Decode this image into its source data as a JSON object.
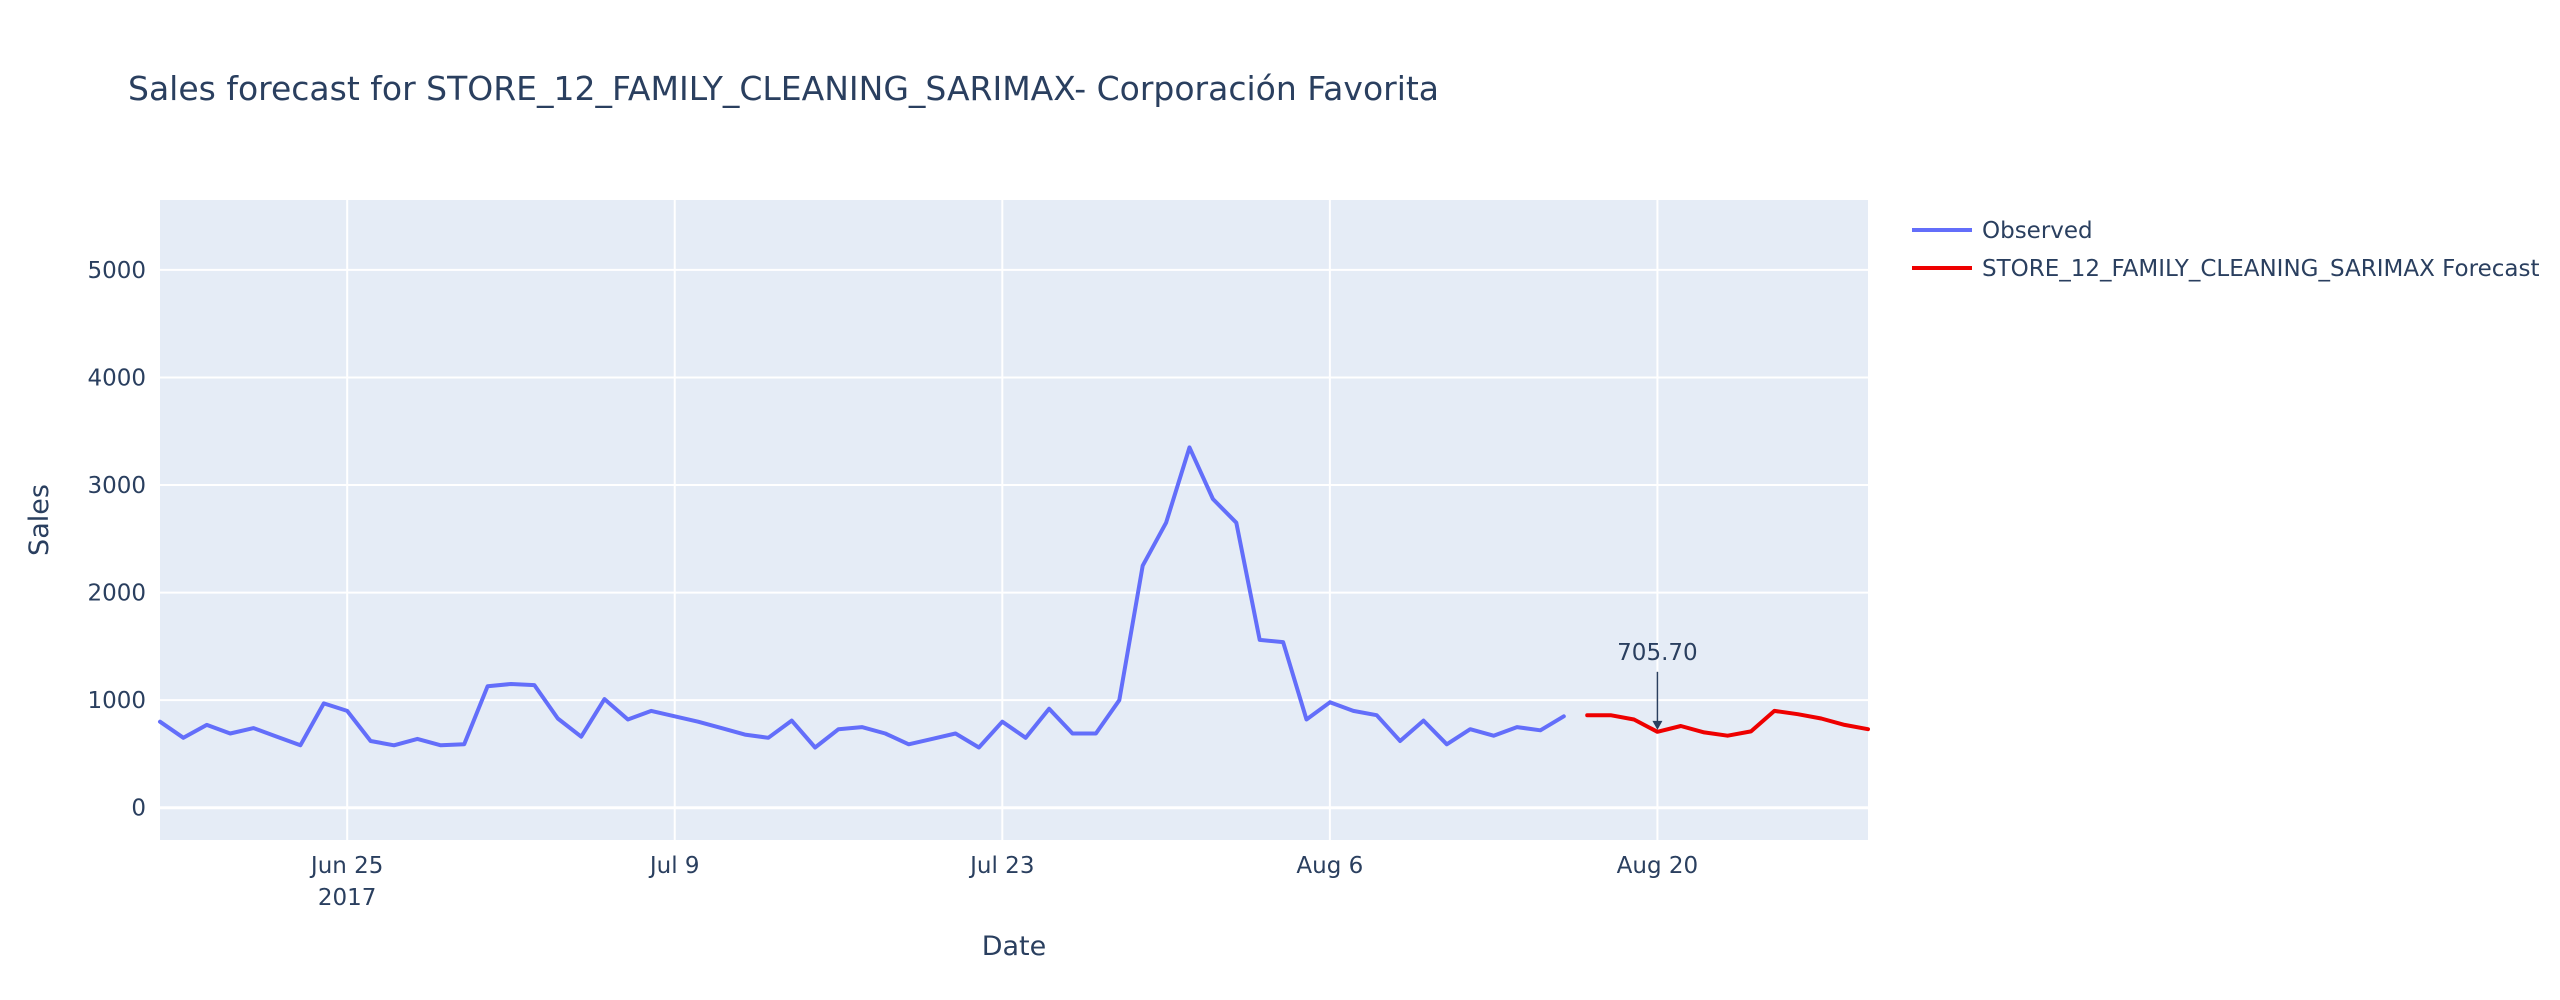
{
  "chart_data": {
    "type": "line",
    "title": "Sales forecast for STORE_12_FAMILY_CLEANING_SARIMAX- Corporación Favorita",
    "xlabel": "Date",
    "ylabel": "Sales",
    "xlim": [
      "2017-06-17",
      "2017-08-29"
    ],
    "ylim": [
      -300,
      5650
    ],
    "x_ticks": [
      {
        "date": "2017-06-25",
        "label": "Jun 25",
        "sublabel": "2017"
      },
      {
        "date": "2017-07-09",
        "label": "Jul 9",
        "sublabel": ""
      },
      {
        "date": "2017-07-23",
        "label": "Jul 23",
        "sublabel": ""
      },
      {
        "date": "2017-08-06",
        "label": "Aug 6",
        "sublabel": ""
      },
      {
        "date": "2017-08-20",
        "label": "Aug 20",
        "sublabel": ""
      }
    ],
    "y_ticks": [
      0,
      1000,
      2000,
      3000,
      4000,
      5000
    ],
    "grid": true,
    "plot_background": "#e5ecf6",
    "legend_position": "top-right",
    "series": [
      {
        "name": "Observed",
        "color": "#636efa",
        "points": [
          [
            "2017-06-17",
            800
          ],
          [
            "2017-06-18",
            650
          ],
          [
            "2017-06-19",
            770
          ],
          [
            "2017-06-20",
            690
          ],
          [
            "2017-06-21",
            740
          ],
          [
            "2017-06-22",
            660
          ],
          [
            "2017-06-23",
            580
          ],
          [
            "2017-06-24",
            970
          ],
          [
            "2017-06-25",
            900
          ],
          [
            "2017-06-26",
            620
          ],
          [
            "2017-06-27",
            580
          ],
          [
            "2017-06-28",
            640
          ],
          [
            "2017-06-29",
            580
          ],
          [
            "2017-06-30",
            590
          ],
          [
            "2017-07-01",
            1130
          ],
          [
            "2017-07-02",
            1150
          ],
          [
            "2017-07-03",
            1140
          ],
          [
            "2017-07-04",
            830
          ],
          [
            "2017-07-05",
            660
          ],
          [
            "2017-07-06",
            1010
          ],
          [
            "2017-07-07",
            820
          ],
          [
            "2017-07-08",
            900
          ],
          [
            "2017-07-09",
            850
          ],
          [
            "2017-07-10",
            800
          ],
          [
            "2017-07-11",
            740
          ],
          [
            "2017-07-12",
            680
          ],
          [
            "2017-07-13",
            650
          ],
          [
            "2017-07-14",
            810
          ],
          [
            "2017-07-15",
            560
          ],
          [
            "2017-07-16",
            730
          ],
          [
            "2017-07-17",
            750
          ],
          [
            "2017-07-18",
            690
          ],
          [
            "2017-07-19",
            590
          ],
          [
            "2017-07-20",
            640
          ],
          [
            "2017-07-21",
            690
          ],
          [
            "2017-07-22",
            560
          ],
          [
            "2017-07-23",
            800
          ],
          [
            "2017-07-24",
            650
          ],
          [
            "2017-07-25",
            920
          ],
          [
            "2017-07-26",
            690
          ],
          [
            "2017-07-27",
            690
          ],
          [
            "2017-07-28",
            1000
          ],
          [
            "2017-07-29",
            2250
          ],
          [
            "2017-07-30",
            2650
          ],
          [
            "2017-07-31",
            3350
          ],
          [
            "2017-08-01",
            2870
          ],
          [
            "2017-08-02",
            2650
          ],
          [
            "2017-08-03",
            1560
          ],
          [
            "2017-08-04",
            1540
          ],
          [
            "2017-08-05",
            820
          ],
          [
            "2017-08-06",
            980
          ],
          [
            "2017-08-07",
            900
          ],
          [
            "2017-08-08",
            860
          ],
          [
            "2017-08-09",
            620
          ],
          [
            "2017-08-10",
            810
          ],
          [
            "2017-08-11",
            590
          ],
          [
            "2017-08-12",
            730
          ],
          [
            "2017-08-13",
            670
          ],
          [
            "2017-08-14",
            750
          ],
          [
            "2017-08-15",
            720
          ],
          [
            "2017-08-16",
            850
          ]
        ]
      },
      {
        "name": "STORE_12_FAMILY_CLEANING_SARIMAX Forecast",
        "color": "#ee0000",
        "points": [
          [
            "2017-08-17",
            860
          ],
          [
            "2017-08-18",
            860
          ],
          [
            "2017-08-19",
            820
          ],
          [
            "2017-08-20",
            705.7
          ],
          [
            "2017-08-21",
            760
          ],
          [
            "2017-08-22",
            700
          ],
          [
            "2017-08-23",
            670
          ],
          [
            "2017-08-24",
            710
          ],
          [
            "2017-08-25",
            900
          ],
          [
            "2017-08-26",
            870
          ],
          [
            "2017-08-27",
            830
          ],
          [
            "2017-08-28",
            770
          ],
          [
            "2017-08-29",
            730
          ]
        ]
      }
    ],
    "annotations": [
      {
        "date": "2017-08-20",
        "value": 705.7,
        "text": "705.70"
      }
    ]
  }
}
